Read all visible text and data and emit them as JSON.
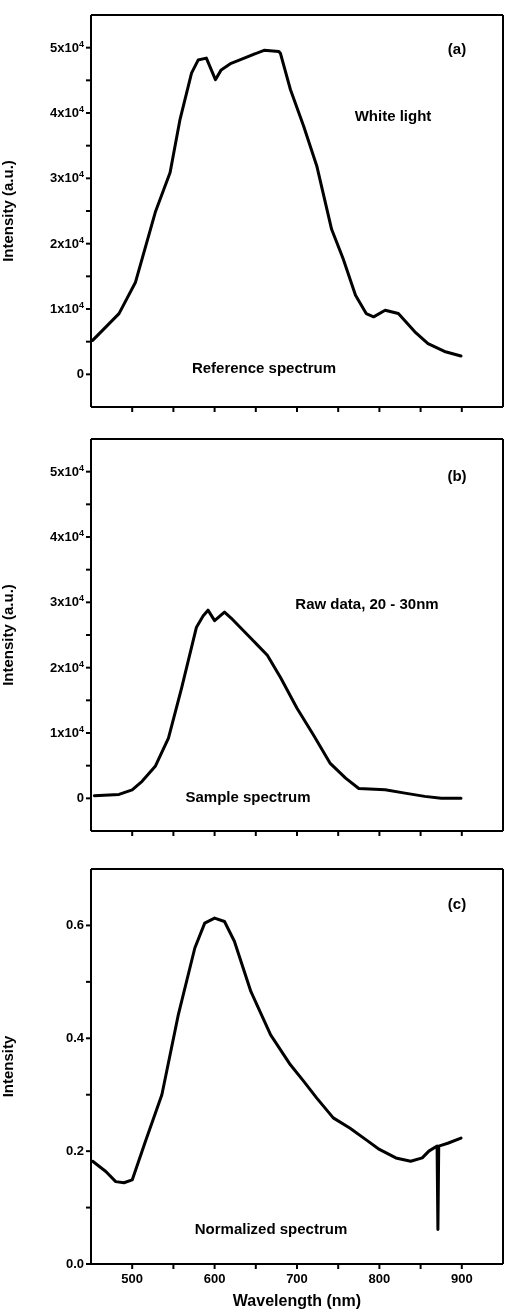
{
  "chart_data": [
    {
      "type": "line",
      "ylabel": "Intensity (a.u.)",
      "annotations": [
        "(a)",
        "White light",
        "Reference spectrum"
      ],
      "xlim": [
        450,
        950
      ],
      "xticks": [
        {
          "value": 500,
          "label": null
        },
        {
          "value": 550,
          "label": null
        },
        {
          "value": 600,
          "label": null
        },
        {
          "value": 650,
          "label": null
        },
        {
          "value": 700,
          "label": null
        },
        {
          "value": 750,
          "label": null
        },
        {
          "value": 800,
          "label": null
        },
        {
          "value": 850,
          "label": null
        },
        {
          "value": 900,
          "label": null
        }
      ],
      "ylim": [
        -5000,
        55000
      ],
      "yticks": [
        {
          "value": 0,
          "label": "0"
        },
        {
          "value": 5000,
          "label": null
        },
        {
          "value": 10000,
          "label": "1x10$^{4}$"
        },
        {
          "value": 15000,
          "label": null
        },
        {
          "value": 20000,
          "label": "2x10$^{4}$"
        },
        {
          "value": 25000,
          "label": null
        },
        {
          "value": 30000,
          "label": "3x10$^{4}$"
        },
        {
          "value": 35000,
          "label": null
        },
        {
          "value": 40000,
          "label": "4x10$^{4}$"
        },
        {
          "value": 45000,
          "label": null
        },
        {
          "value": 50000,
          "label": "5x10$^{4}$"
        }
      ],
      "tick_labels": "y",
      "x": [
        452,
        484,
        504,
        528,
        546,
        558,
        572,
        580,
        590,
        601,
        608,
        620,
        636,
        660,
        678,
        680,
        692,
        708,
        724,
        742,
        756,
        771,
        784,
        793,
        807,
        823,
        843,
        859,
        879,
        899
      ],
      "series": [
        {
          "color": "#000000",
          "values": [
            5200,
            9300,
            14100,
            24800,
            30900,
            39000,
            46100,
            48100,
            48400,
            45100,
            46600,
            47600,
            48400,
            49600,
            49400,
            49100,
            43600,
            38000,
            31900,
            22200,
            17700,
            12100,
            9300,
            8800,
            9800,
            9300,
            6500,
            4700,
            3500,
            2800
          ]
        }
      ]
    },
    {
      "type": "line",
      "ylabel": "Intensity (a.u.)",
      "annotations": [
        "(b)",
        "Raw data, 20 - 30nm",
        "Sample spectrum"
      ],
      "xlim": [
        450,
        950
      ],
      "xticks": [
        {
          "value": 500,
          "label": null
        },
        {
          "value": 550,
          "label": null
        },
        {
          "value": 600,
          "label": null
        },
        {
          "value": 650,
          "label": null
        },
        {
          "value": 700,
          "label": null
        },
        {
          "value": 750,
          "label": null
        },
        {
          "value": 800,
          "label": null
        },
        {
          "value": 850,
          "label": null
        },
        {
          "value": 900,
          "label": null
        }
      ],
      "ylim": [
        -5000,
        55000
      ],
      "yticks": [
        {
          "value": 0,
          "label": "0"
        },
        {
          "value": 5000,
          "label": null
        },
        {
          "value": 10000,
          "label": "1x10$^{4}$"
        },
        {
          "value": 15000,
          "label": null
        },
        {
          "value": 20000,
          "label": "2x10$^{4}$"
        },
        {
          "value": 25000,
          "label": null
        },
        {
          "value": 30000,
          "label": "3x10$^{4}$"
        },
        {
          "value": 35000,
          "label": null
        },
        {
          "value": 40000,
          "label": "4x10$^{4}$"
        },
        {
          "value": 45000,
          "label": null
        },
        {
          "value": 50000,
          "label": "5x10$^{4}$"
        }
      ],
      "tick_labels": "y",
      "x": [
        454,
        484,
        500,
        512,
        528,
        544,
        560,
        578,
        586,
        592,
        600,
        612,
        620,
        644,
        664,
        680,
        700,
        720,
        740,
        759,
        775,
        807,
        831,
        855,
        875,
        899
      ],
      "series": [
        {
          "color": "#000000",
          "values": [
            400,
            600,
            1300,
            2600,
            4900,
            9200,
            16900,
            26200,
            27900,
            28800,
            27200,
            28500,
            27600,
            24500,
            21900,
            18500,
            13800,
            9700,
            5400,
            3100,
            1500,
            1300,
            800,
            300,
            0,
            0
          ]
        }
      ]
    },
    {
      "type": "line",
      "xlabel": "Wavelength (nm)",
      "ylabel": "Intensity",
      "annotations": [
        "(c)",
        "Normalized spectrum"
      ],
      "xlim": [
        450,
        950
      ],
      "xticks": [
        500,
        {
          "value": 550,
          "label": null
        },
        600,
        {
          "value": 650,
          "label": null
        },
        700,
        {
          "value": 750,
          "label": null
        },
        800,
        {
          "value": 850,
          "label": null
        },
        900
      ],
      "ylim": [
        0,
        0.7
      ],
      "yticks": [
        {
          "value": 0,
          "label": "0.0"
        },
        {
          "value": 0.1,
          "label": null
        },
        0.2,
        {
          "value": 0.3,
          "label": null
        },
        0.4,
        {
          "value": 0.5,
          "label": null
        },
        0.6
      ],
      "x": [
        452,
        468,
        480,
        490,
        500,
        516,
        536,
        556,
        576,
        588,
        600,
        612,
        624,
        644,
        668,
        692,
        708,
        724,
        744,
        764,
        784,
        800,
        820,
        838,
        852,
        860,
        870,
        871,
        872,
        883,
        899
      ],
      "series": [
        {
          "color": "#000000",
          "values": [
            0.182,
            0.164,
            0.146,
            0.144,
            0.149,
            0.217,
            0.3,
            0.442,
            0.56,
            0.604,
            0.613,
            0.607,
            0.572,
            0.483,
            0.406,
            0.353,
            0.324,
            0.294,
            0.259,
            0.241,
            0.22,
            0.203,
            0.188,
            0.182,
            0.188,
            0.2,
            0.209,
            0.061,
            0.209,
            0.214,
            0.223
          ]
        }
      ]
    }
  ]
}
